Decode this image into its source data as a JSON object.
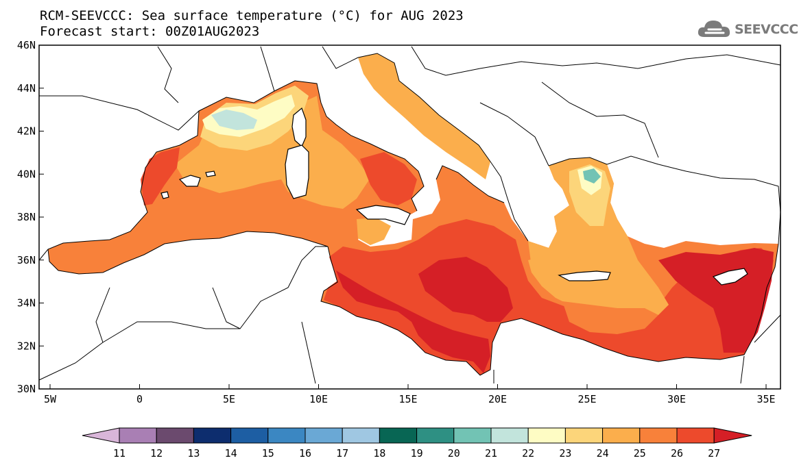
{
  "title": {
    "line1": "RCM-SEEVCCC: Sea surface temperature (°C) for AUG 2023",
    "line2": "Forecast start: 00Z01AUG2023"
  },
  "logo": {
    "text": "SEEVCCC",
    "icon": "cloud-icon"
  },
  "map": {
    "variable": "Sea surface temperature",
    "unit": "°C",
    "lon_range": [
      -5.5,
      36.5
    ],
    "lat_range": [
      30,
      46
    ],
    "lon_ticks": [
      "5W",
      "0",
      "5E",
      "10E",
      "15E",
      "20E",
      "25E",
      "30E",
      "35E"
    ],
    "lat_ticks": [
      "46N",
      "44N",
      "42N",
      "40N",
      "38N",
      "36N",
      "34N",
      "32N",
      "30N"
    ]
  },
  "colorbar": {
    "labels": [
      "11",
      "12",
      "13",
      "14",
      "15",
      "16",
      "17",
      "18",
      "19",
      "20",
      "21",
      "22",
      "23",
      "24",
      "25",
      "26",
      "27"
    ],
    "colors": [
      "#d9b6d9",
      "#a97fb4",
      "#6b4a6e",
      "#0d2d6e",
      "#1d5ea3",
      "#3b87c2",
      "#6aa8d5",
      "#9fc7e2",
      "#086654",
      "#2e9083",
      "#72c3b4",
      "#c2e4dc",
      "#fefcc4",
      "#fcd57a",
      "#fbae4c",
      "#f8813a",
      "#ed4a2c",
      "#d51f26"
    ]
  },
  "colors": {
    "land": "#ffffff",
    "outline": "#000000"
  }
}
